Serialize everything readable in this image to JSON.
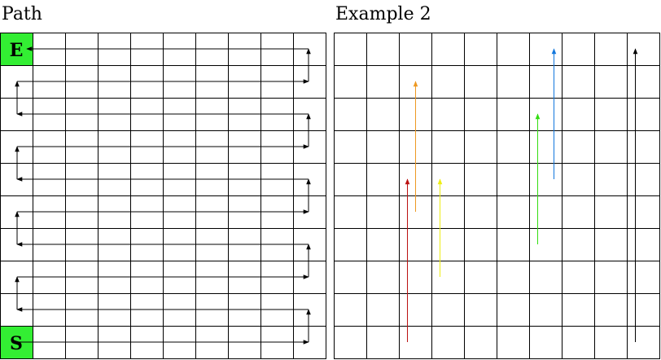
{
  "panels": [
    {
      "title": "Path",
      "rows": 10,
      "cols": 10,
      "start_label": "S",
      "end_label": "E",
      "highlight_color": "#33ee33",
      "path_color": "#000000",
      "path_description": "serpentine path from bottom-left S to top-left E"
    },
    {
      "title": "Example 2",
      "rows": 10,
      "cols": 10,
      "arrows": [
        {
          "color": "#bb1111",
          "col": 2,
          "from_row": 9,
          "to_row": 4
        },
        {
          "color": "#ee9922",
          "col": 2,
          "from_row": 5,
          "to_row": 1
        },
        {
          "color": "#eeee11",
          "col": 3,
          "from_row": 7,
          "to_row": 4
        },
        {
          "color": "#33dd11",
          "col": 6,
          "from_row": 6,
          "to_row": 2
        },
        {
          "color": "#1177dd",
          "col": 6,
          "from_row": 4,
          "to_row": 0
        },
        {
          "color": "#000000",
          "col": 9,
          "from_row": 9,
          "to_row": 0
        }
      ]
    }
  ]
}
